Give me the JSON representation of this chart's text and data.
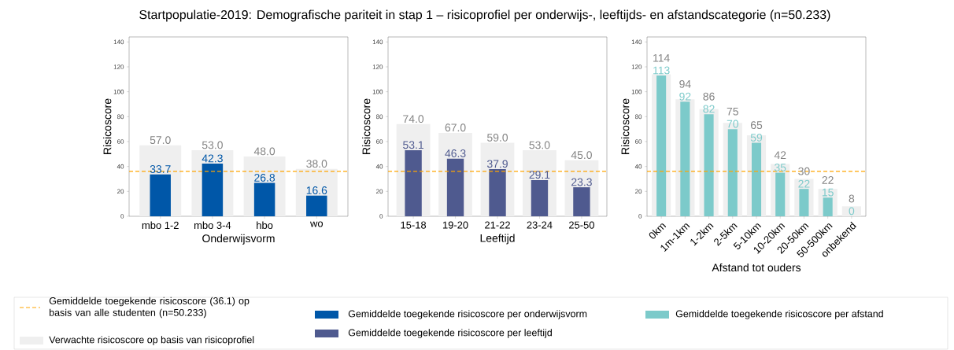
{
  "chart_data": [
    {
      "type": "bar",
      "title": "Startpopulatie-2019: Demografische pariteit in stap 1 – risicoprofiel per onderwijs-, leeftijds- en afstandscategorie (n=50.233)",
      "xlabel": "Onderwijsvorm",
      "ylabel": "Risicoscore",
      "categories": [
        "mbo 1-2",
        "mbo 3-4",
        "hbo",
        "wo"
      ],
      "ylim": [
        0,
        144
      ],
      "yticks": [
        0,
        20,
        40,
        60,
        80,
        100,
        120,
        140
      ],
      "grid": false,
      "legend": "bottom",
      "series": [
        {
          "name": "Verwachte risicoscore op basis van risicoprofiel",
          "color": "#efefef",
          "values": [
            57.0,
            53.0,
            48.0,
            38.0
          ],
          "value_labels": [
            "57.0",
            "53.0",
            "48.0",
            "38.0"
          ]
        },
        {
          "name": "Gemiddelde toegekende risicoscore per onderwijsvorm",
          "color": "#0057a8",
          "values": [
            33.7,
            42.3,
            26.8,
            16.6
          ],
          "value_labels": [
            "33.7",
            "42.3",
            "26.8",
            "16.6"
          ]
        }
      ],
      "ref_lines": [
        {
          "axis": "y",
          "value": 36.1,
          "label": "Gemiddelde toegekende risicoscore (36.1) op basis van alle studenten (n=50.233)",
          "color": "#ffa500",
          "line_style": "dashed"
        }
      ]
    },
    {
      "type": "bar",
      "xlabel": "Leeftijd",
      "ylabel": "Risicoscore",
      "categories": [
        "15-18",
        "19-20",
        "21-22",
        "23-24",
        "25-50"
      ],
      "ylim": [
        0,
        144
      ],
      "yticks": [
        0,
        20,
        40,
        60,
        80,
        100,
        120,
        140
      ],
      "grid": false,
      "legend": "bottom",
      "series": [
        {
          "color": "#efefef",
          "values": [
            74.0,
            67.0,
            59.0,
            53.0,
            45.0
          ],
          "value_labels": [
            "74.0",
            "67.0",
            "59.0",
            "53.0",
            "45.0"
          ]
        },
        {
          "name": "Gemiddelde toegekende risicoscore per leeftijd",
          "color": "#4f5a8f",
          "values": [
            53.1,
            46.3,
            37.9,
            29.1,
            23.3
          ],
          "value_labels": [
            "53.1",
            "46.3",
            "37.9",
            "29.1",
            "23.3"
          ]
        }
      ],
      "ref_lines": [
        {
          "axis": "y",
          "value": 36.1,
          "color": "#ffa500",
          "line_style": "dashed"
        }
      ]
    },
    {
      "type": "bar",
      "xlabel": "Afstand tot ouders",
      "ylabel": "Risicoscore",
      "categories": [
        "0km",
        "1m-1km",
        "1-2km",
        "2-5km",
        "5-10km",
        "10-20km",
        "20-50km",
        "50-500km",
        "onbekend"
      ],
      "ylim": [
        0,
        144
      ],
      "yticks": [
        0,
        20,
        40,
        60,
        80,
        100,
        120,
        140
      ],
      "grid": false,
      "legend": "bottom",
      "series": [
        {
          "color": "#efefef",
          "values": [
            114,
            94,
            86,
            75,
            65,
            42,
            30,
            22,
            8
          ],
          "value_labels": [
            "114",
            "94",
            "86",
            "75",
            "65",
            "42",
            "30",
            "22",
            "8"
          ]
        },
        {
          "name": "Gemiddelde toegekende risicoscore per afstand",
          "color": "#7ccaca",
          "values": [
            113,
            92,
            82,
            70,
            59,
            35,
            22,
            15,
            0
          ],
          "value_labels": [
            "113",
            "92",
            "82",
            "70",
            "59",
            "35",
            "22",
            "15",
            "0"
          ]
        }
      ],
      "ref_lines": [
        {
          "axis": "y",
          "value": 36.1,
          "color": "#ffa500",
          "line_style": "dashed"
        }
      ]
    }
  ]
}
